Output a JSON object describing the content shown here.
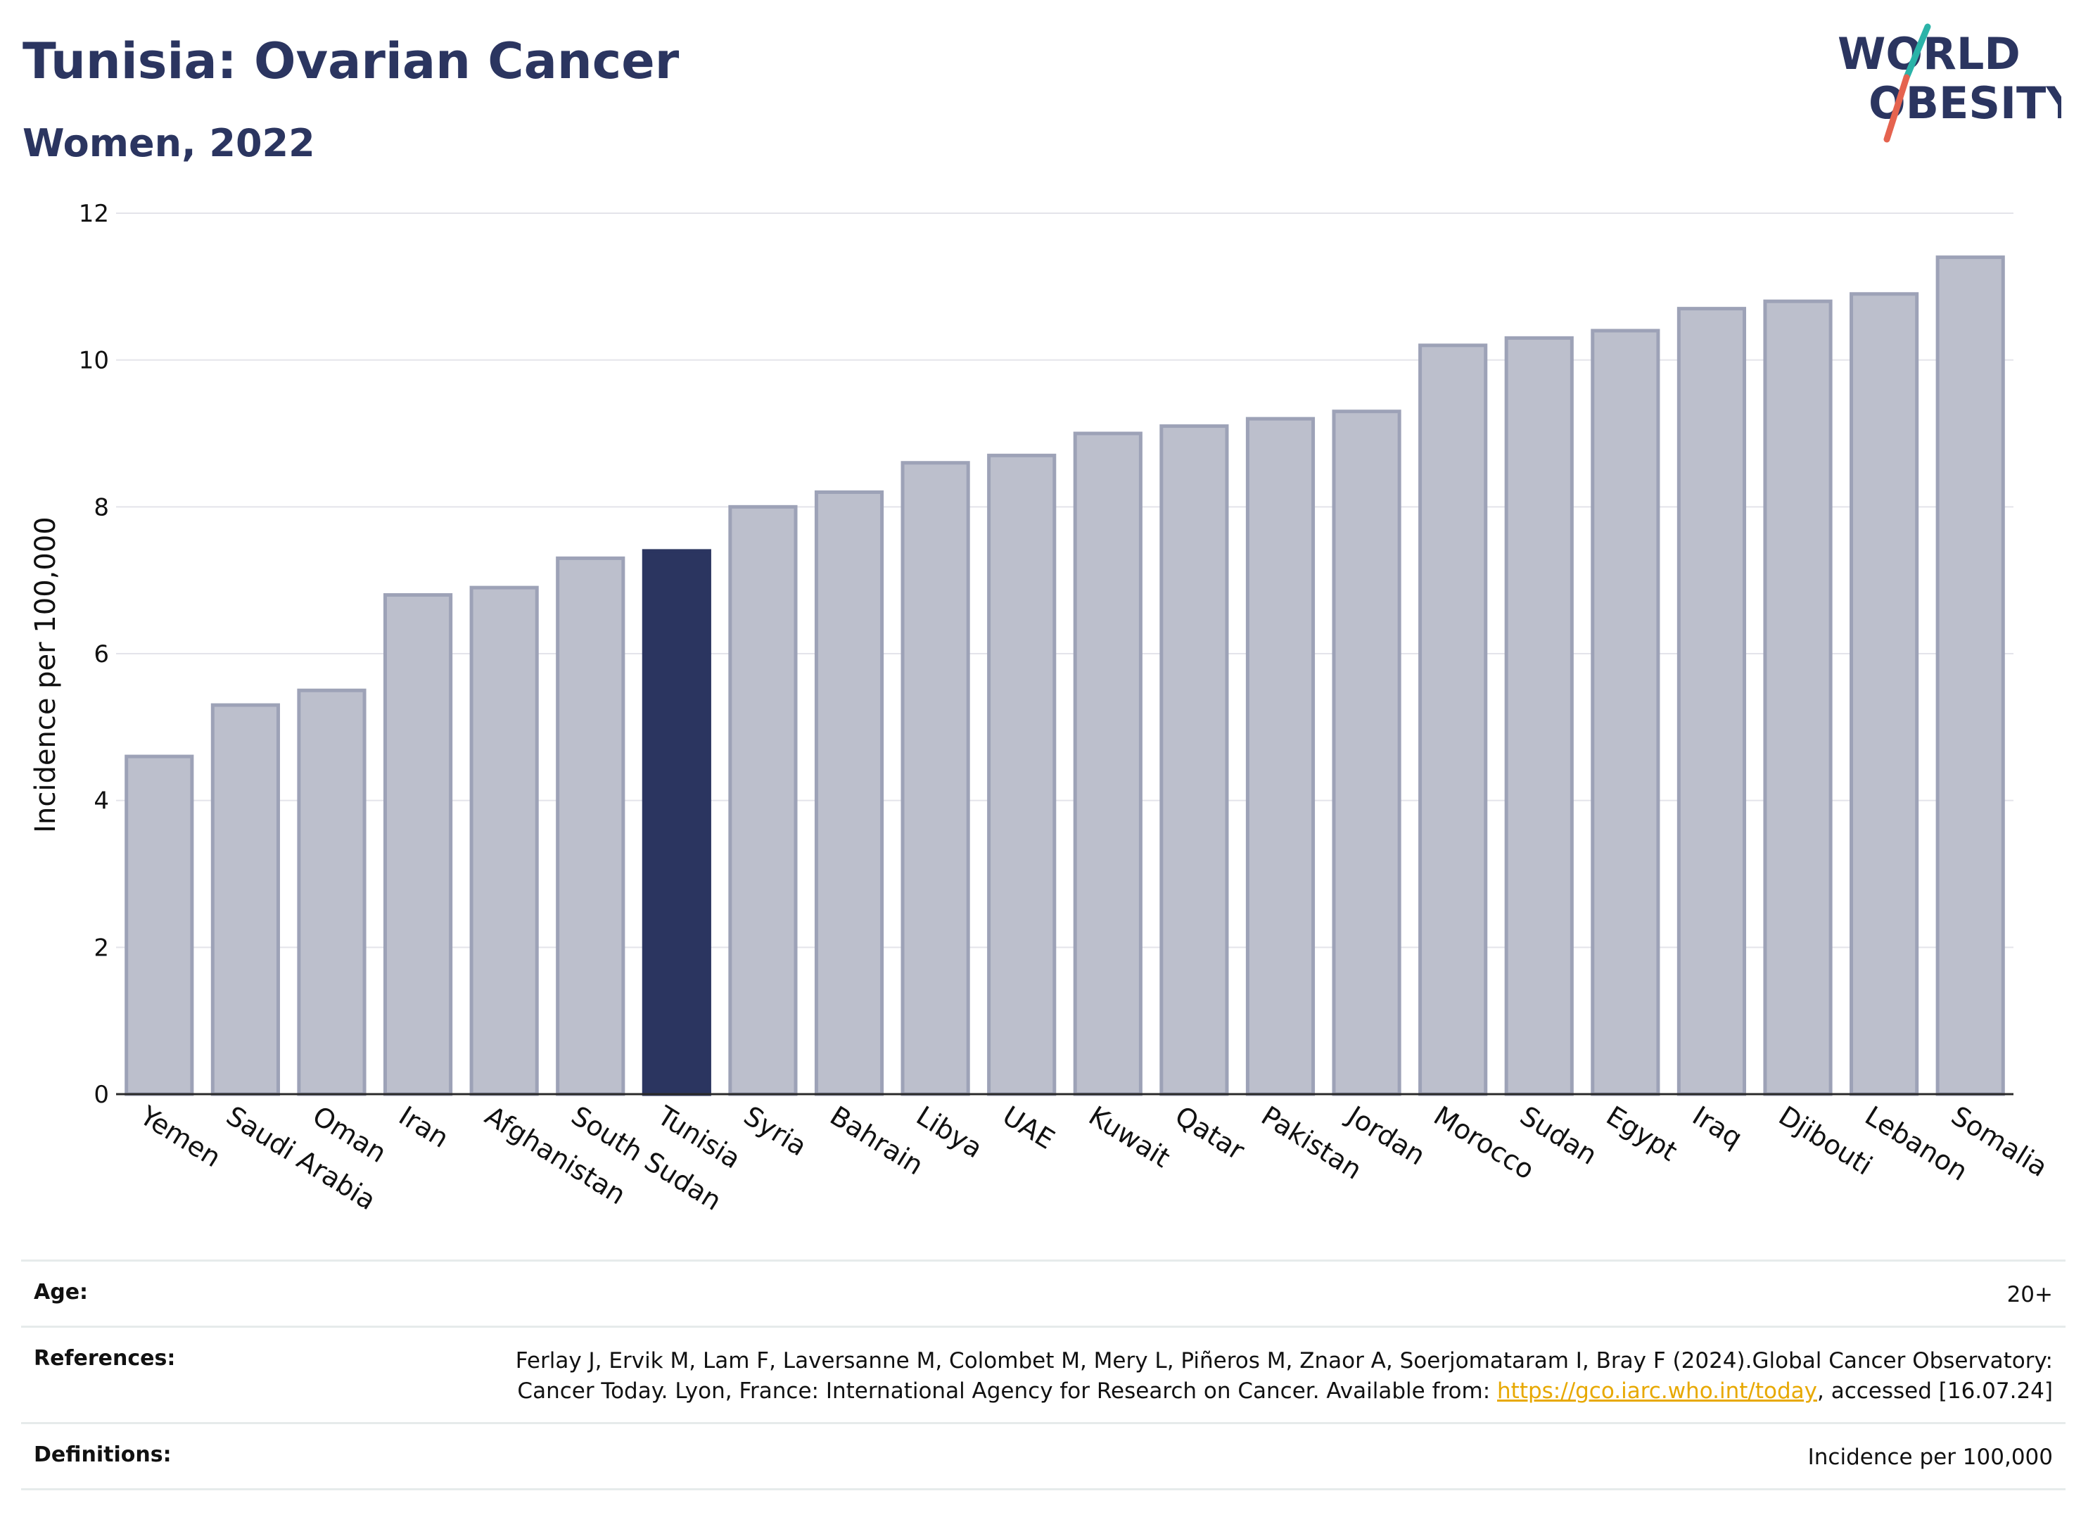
{
  "header": {
    "title": "Tunisia: Ovarian Cancer",
    "subtitle": "Women, 2022",
    "logo_line1": "WORLD",
    "logo_line2": "OBESITY"
  },
  "chart_data": {
    "type": "bar",
    "title": "Tunisia: Ovarian Cancer",
    "subtitle": "Women, 2022",
    "xlabel": "",
    "ylabel": "Incidence per 100,000",
    "ylim": [
      0,
      12
    ],
    "yticks": [
      0,
      2,
      4,
      6,
      8,
      10,
      12
    ],
    "grid": true,
    "highlight": "Tunisia",
    "colors": {
      "bar": "#bcbfcc",
      "bar_edge": "#9da2b7",
      "highlight": "#2b3560",
      "grid": "#e4e4ea",
      "axis": "#2a2a2a"
    },
    "categories": [
      "Yemen",
      "Saudi Arabia",
      "Oman",
      "Iran",
      "Afghanistan",
      "South Sudan",
      "Tunisia",
      "Syria",
      "Bahrain",
      "Libya",
      "UAE",
      "Kuwait",
      "Qatar",
      "Pakistan",
      "Jordan",
      "Morocco",
      "Sudan",
      "Egypt",
      "Iraq",
      "Djibouti",
      "Lebanon",
      "Somalia"
    ],
    "values": [
      4.6,
      5.3,
      5.5,
      6.8,
      6.9,
      7.3,
      7.4,
      8.0,
      8.2,
      8.6,
      8.7,
      9.0,
      9.1,
      9.2,
      9.3,
      10.2,
      10.3,
      10.4,
      10.7,
      10.8,
      10.9,
      11.4
    ]
  },
  "footer": {
    "age_label": "Age:",
    "age_value": "20+",
    "references_label": "References:",
    "references_text_1": "Ferlay J, Ervik M, Lam F, Laversanne M, Colombet M, Mery L, Piñeros M, Znaor A, Soerjomataram I, Bray F (2024).Global Cancer Observatory: Cancer Today. Lyon, France: International Agency for Research on Cancer. Available from: ",
    "references_link": "https://gco.iarc.who.int/today",
    "references_text_2": ", accessed [16.07.24]",
    "definitions_label": "Definitions:",
    "definitions_value": "Incidence per 100,000"
  }
}
